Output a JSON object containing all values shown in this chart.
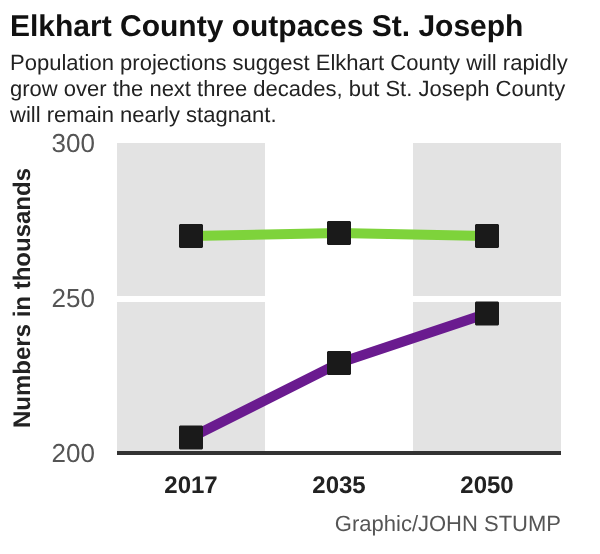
{
  "chart_data": {
    "type": "line",
    "title": "Elkhart County outpaces St. Joseph",
    "subtitle": "Population projections suggest Elkhart County will rapidly grow over the next three decades, but St. Joseph County will remain nearly stagnant.",
    "ylabel": "Numbers in thousands",
    "categories": [
      "2017",
      "2035",
      "2050"
    ],
    "series": [
      {
        "color": "#7ed33b",
        "values": [
          270,
          271,
          270
        ]
      },
      {
        "color": "#6a1b8f",
        "values": [
          205,
          229,
          245
        ]
      }
    ],
    "ylim": [
      200,
      300
    ],
    "yticks": [
      200,
      250,
      300
    ],
    "grid": "y",
    "marker": "square",
    "line_style": "solid",
    "bands": [
      {
        "axis": "x",
        "from": "2017",
        "to": "2017",
        "color": "#e3e3e3"
      },
      {
        "axis": "x",
        "from": "2050",
        "to": "2050",
        "color": "#e3e3e3"
      }
    ],
    "annotations": [
      "Graphic/JOHN STUMP"
    ]
  }
}
